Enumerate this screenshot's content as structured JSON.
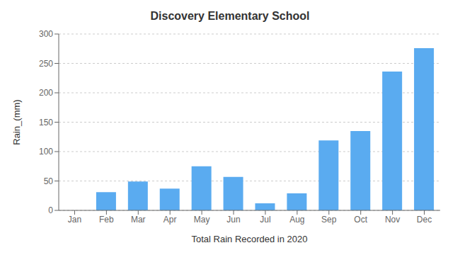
{
  "chart_data": {
    "type": "bar",
    "title": "Discovery Elementary School",
    "xlabel": "Total Rain Recorded in 2020",
    "ylabel": "Rain_(mm)",
    "categories": [
      "Jan",
      "Feb",
      "Mar",
      "Apr",
      "May",
      "Jun",
      "Jul",
      "Aug",
      "Sep",
      "Oct",
      "Nov",
      "Dec"
    ],
    "values": [
      0,
      31,
      49,
      37,
      75,
      57,
      12,
      29,
      119,
      135,
      236,
      276
    ],
    "color": "#5aabf0",
    "ylim": [
      0,
      300
    ],
    "yticks": [
      0,
      50,
      100,
      150,
      200,
      250,
      300
    ],
    "grid": true
  }
}
